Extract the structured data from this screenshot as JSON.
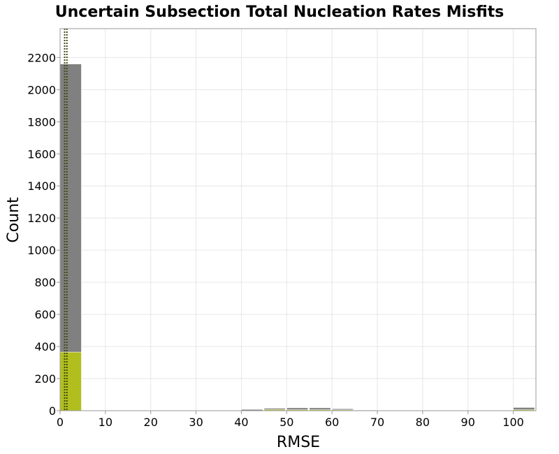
{
  "chart_data": {
    "type": "bar",
    "title": "Uncertain Subsection Total Nucleation Rates Misfits",
    "xlabel": "RMSE",
    "ylabel": "Count",
    "xlim": [
      0,
      105
    ],
    "ylim": [
      0,
      2380
    ],
    "x_ticks": [
      0,
      10,
      20,
      30,
      40,
      50,
      60,
      70,
      80,
      90,
      100
    ],
    "y_ticks": [
      0,
      200,
      400,
      600,
      800,
      1000,
      1200,
      1400,
      1600,
      1800,
      2000,
      2200
    ],
    "grid": true,
    "bin_width": 4.7,
    "series": [
      {
        "color": "#808080",
        "bins": [
          {
            "x": 0.0,
            "value": 2160
          },
          {
            "x": 40.0,
            "value": 8
          },
          {
            "x": 45.0,
            "value": 15
          },
          {
            "x": 50.0,
            "value": 18
          },
          {
            "x": 55.0,
            "value": 18
          },
          {
            "x": 60.0,
            "value": 12
          },
          {
            "x": 65.0,
            "value": 4
          },
          {
            "x": 100.0,
            "value": 20
          }
        ]
      },
      {
        "color": "#b2be1e",
        "bins": [
          {
            "x": 0.0,
            "value": 365
          },
          {
            "x": 45.0,
            "value": 7
          },
          {
            "x": 50.0,
            "value": 6
          },
          {
            "x": 55.0,
            "value": 6
          },
          {
            "x": 60.0,
            "value": 5
          },
          {
            "x": 100.0,
            "value": 6
          }
        ]
      }
    ],
    "reference_lines": [
      {
        "x": 1.0,
        "color": "#3c4a10",
        "style": "dotted"
      },
      {
        "x": 1.5,
        "color": "#3c4a10",
        "style": "dotted"
      }
    ],
    "colors": {
      "grid": "#e6e6e6",
      "plot_border": "#999999",
      "reference_line": "#3c4a10"
    }
  }
}
